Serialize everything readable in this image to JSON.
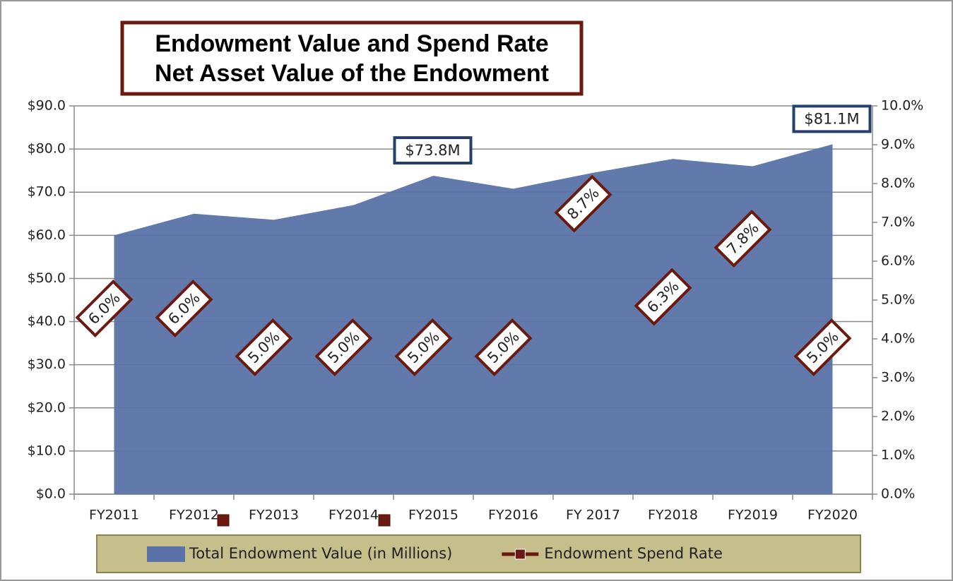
{
  "chart_data": {
    "type": "area-line",
    "title": "Endowment Value and Spend Rate",
    "subtitle": "Net Asset Value of the Endowment",
    "categories": [
      "FY2011",
      "FY2012",
      "FY2013",
      "FY2014",
      "FY2015",
      "FY2016",
      "FY 2017",
      "FY2018",
      "FY2019",
      "FY2020"
    ],
    "series": [
      {
        "name": "Total Endowment Value (in Millions)",
        "type": "area",
        "color": "#5a72a8",
        "values": [
          60.0,
          65.0,
          63.6,
          67.0,
          73.8,
          70.8,
          74.5,
          77.7,
          76.0,
          81.1
        ]
      },
      {
        "name": "Endowment Spend Rate",
        "type": "line",
        "axis": "y2",
        "color": "#6b1a10",
        "values": [
          6.0,
          6.0,
          5.0,
          5.0,
          5.0,
          5.0,
          8.7,
          6.3,
          7.8,
          5.0
        ],
        "value_labels": [
          "6.0%",
          "6.0%",
          "5.0%",
          "5.0%",
          "5.0%",
          "5.0%",
          "8.7%",
          "6.3%",
          "7.8%",
          "5.0%"
        ]
      }
    ],
    "annotations": [
      {
        "text": "$73.8M",
        "category": "FY2015"
      },
      {
        "text": "$81.1M",
        "category": "FY2020"
      }
    ],
    "ylim": [
      0,
      90
    ],
    "yticks": [
      {
        "value": 0,
        "label": "$0.0"
      },
      {
        "value": 10,
        "label": "$10.0"
      },
      {
        "value": 20,
        "label": "$20.0"
      },
      {
        "value": 30,
        "label": "$30.0"
      },
      {
        "value": 40,
        "label": "$40.0"
      },
      {
        "value": 50,
        "label": "$50.0"
      },
      {
        "value": 60,
        "label": "$60.0"
      },
      {
        "value": 70,
        "label": "$70.0"
      },
      {
        "value": 80,
        "label": "$80.0"
      },
      {
        "value": 90,
        "label": "$90.0"
      }
    ],
    "y2lim": [
      0,
      10
    ],
    "y2ticks": [
      {
        "value": 0,
        "label": "0.0%"
      },
      {
        "value": 1,
        "label": "1.0%"
      },
      {
        "value": 2,
        "label": "2.0%"
      },
      {
        "value": 3,
        "label": "3.0%"
      },
      {
        "value": 4,
        "label": "4.0%"
      },
      {
        "value": 5,
        "label": "5.0%"
      },
      {
        "value": 6,
        "label": "6.0%"
      },
      {
        "value": 7,
        "label": "7.0%"
      },
      {
        "value": 8,
        "label": "8.0%"
      },
      {
        "value": 9,
        "label": "9.0%"
      },
      {
        "value": 10,
        "label": "10.0%"
      }
    ],
    "grid": true,
    "legend": "bottom"
  }
}
